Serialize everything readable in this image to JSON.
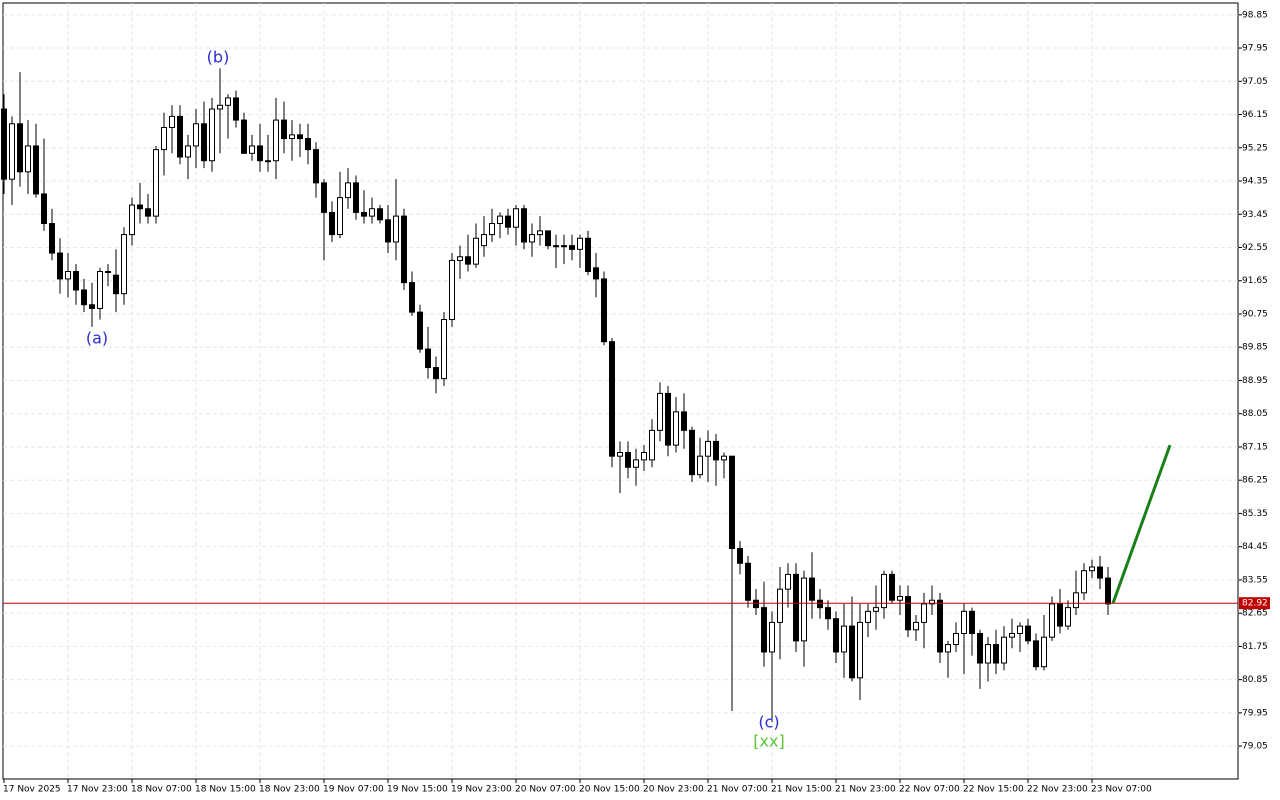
{
  "chart_data": {
    "type": "candlestick",
    "ylim": [
      78.16,
      99.17
    ],
    "yticks": [
      98.85,
      97.95,
      97.05,
      96.15,
      95.25,
      94.35,
      93.45,
      92.55,
      91.65,
      90.75,
      89.85,
      88.95,
      88.05,
      87.15,
      86.25,
      85.35,
      84.45,
      83.55,
      82.65,
      81.75,
      80.85,
      79.95,
      79.05
    ],
    "xticks": [
      "17 Nov 2025",
      "17 Nov 23:00",
      "18 Nov 07:00",
      "18 Nov 15:00",
      "18 Nov 23:00",
      "19 Nov 07:00",
      "19 Nov 15:00",
      "19 Nov 23:00",
      "20 Nov 07:00",
      "20 Nov 15:00",
      "20 Nov 23:00",
      "21 Nov 07:00",
      "21 Nov 15:00",
      "21 Nov 23:00",
      "22 Nov 07:00",
      "22 Nov 15:00",
      "22 Nov 23:00",
      "23 Nov 07:00"
    ],
    "grid": true,
    "current_price": 82.92,
    "forecast": [
      82.92,
      87.2
    ],
    "annotations": [
      {
        "text": "(a)",
        "color": "#2b2bd6"
      },
      {
        "text": "(b)",
        "color": "#2b2bd6"
      },
      {
        "text": "(c)",
        "color": "#2b2bd6"
      },
      {
        "text": "[xx]",
        "color": "#5cc63c"
      }
    ],
    "candles": [
      [
        96.3,
        96.7,
        94.0,
        94.4
      ],
      [
        94.4,
        96.1,
        93.7,
        95.9
      ],
      [
        95.9,
        97.3,
        94.2,
        94.6
      ],
      [
        94.6,
        96.0,
        94.0,
        95.3
      ],
      [
        95.3,
        95.9,
        93.9,
        94.0
      ],
      [
        94.0,
        95.5,
        93.0,
        93.2
      ],
      [
        93.2,
        93.6,
        92.2,
        92.4
      ],
      [
        92.4,
        92.8,
        91.3,
        91.7
      ],
      [
        91.7,
        92.4,
        91.2,
        91.9
      ],
      [
        91.9,
        92.1,
        91.0,
        91.4
      ],
      [
        91.4,
        91.7,
        90.8,
        91.0
      ],
      [
        91.0,
        91.6,
        90.4,
        90.9
      ],
      [
        90.9,
        92.0,
        90.6,
        91.9
      ],
      [
        91.9,
        92.1,
        91.5,
        91.9
      ],
      [
        91.8,
        92.5,
        90.8,
        91.3
      ],
      [
        91.3,
        93.1,
        91.0,
        92.9
      ],
      [
        92.9,
        93.9,
        92.6,
        93.7
      ],
      [
        93.7,
        94.3,
        93.2,
        93.6
      ],
      [
        93.6,
        94.0,
        93.2,
        93.4
      ],
      [
        93.4,
        95.3,
        93.2,
        95.2
      ],
      [
        95.2,
        96.2,
        94.5,
        95.8
      ],
      [
        95.8,
        96.4,
        95.1,
        96.1
      ],
      [
        96.1,
        96.4,
        94.8,
        95.0
      ],
      [
        95.0,
        95.6,
        94.4,
        95.3
      ],
      [
        95.3,
        96.3,
        94.7,
        95.9
      ],
      [
        95.9,
        96.5,
        94.7,
        94.9
      ],
      [
        94.9,
        96.6,
        94.6,
        96.3
      ],
      [
        96.3,
        97.4,
        95.1,
        96.4
      ],
      [
        96.4,
        96.7,
        95.5,
        96.6
      ],
      [
        96.6,
        96.8,
        95.8,
        96.0
      ],
      [
        96.0,
        96.2,
        95.1,
        95.1
      ],
      [
        95.1,
        95.6,
        94.9,
        95.3
      ],
      [
        95.3,
        95.9,
        94.6,
        94.9
      ],
      [
        94.9,
        95.6,
        94.6,
        94.9
      ],
      [
        94.9,
        96.6,
        94.4,
        96.0
      ],
      [
        96.0,
        96.5,
        95.1,
        95.5
      ],
      [
        95.5,
        96.0,
        94.9,
        95.6
      ],
      [
        95.6,
        95.9,
        95.0,
        95.5
      ],
      [
        95.5,
        95.9,
        94.8,
        95.2
      ],
      [
        95.2,
        95.4,
        93.9,
        94.3
      ],
      [
        94.3,
        94.4,
        92.2,
        93.5
      ],
      [
        93.5,
        93.8,
        92.7,
        92.9
      ],
      [
        92.9,
        94.6,
        92.8,
        93.9
      ],
      [
        93.9,
        94.7,
        93.6,
        94.3
      ],
      [
        94.3,
        94.5,
        93.3,
        93.5
      ],
      [
        93.5,
        94.1,
        93.2,
        93.4
      ],
      [
        93.4,
        93.9,
        93.2,
        93.6
      ],
      [
        93.6,
        93.7,
        93.2,
        93.3
      ],
      [
        93.3,
        93.7,
        92.4,
        92.7
      ],
      [
        92.7,
        94.4,
        92.2,
        93.4
      ],
      [
        93.4,
        93.6,
        91.4,
        91.6
      ],
      [
        91.6,
        91.9,
        90.7,
        90.8
      ],
      [
        90.8,
        91.0,
        89.7,
        89.8
      ],
      [
        89.8,
        90.4,
        89.0,
        89.3
      ],
      [
        89.3,
        89.6,
        88.6,
        89.0
      ],
      [
        89.0,
        90.8,
        88.8,
        90.6
      ],
      [
        90.6,
        92.4,
        90.4,
        92.2
      ],
      [
        92.2,
        92.6,
        91.7,
        92.3
      ],
      [
        92.3,
        92.9,
        91.9,
        92.1
      ],
      [
        92.1,
        93.2,
        92.0,
        92.8
      ],
      [
        92.6,
        93.4,
        92.3,
        92.9
      ],
      [
        92.9,
        93.6,
        92.7,
        93.2
      ],
      [
        93.2,
        93.5,
        92.8,
        93.4
      ],
      [
        93.4,
        93.6,
        92.9,
        93.1
      ],
      [
        93.1,
        93.7,
        92.6,
        93.6
      ],
      [
        93.6,
        93.7,
        92.5,
        92.7
      ],
      [
        92.7,
        93.2,
        92.3,
        92.9
      ],
      [
        92.9,
        93.4,
        92.6,
        93.0
      ],
      [
        93.0,
        93.0,
        92.5,
        92.6
      ],
      [
        92.6,
        92.9,
        92.0,
        92.6
      ],
      [
        92.6,
        92.9,
        92.1,
        92.6
      ],
      [
        92.6,
        92.9,
        92.2,
        92.5
      ],
      [
        92.5,
        92.9,
        92.0,
        92.8
      ],
      [
        92.8,
        93.0,
        91.8,
        91.9
      ],
      [
        92.0,
        92.4,
        91.2,
        91.7
      ],
      [
        91.7,
        91.9,
        89.9,
        90.0
      ],
      [
        90.0,
        90.1,
        86.6,
        86.9
      ],
      [
        86.9,
        87.3,
        85.9,
        87.0
      ],
      [
        87.0,
        87.3,
        86.3,
        86.6
      ],
      [
        86.6,
        87.1,
        86.1,
        86.8
      ],
      [
        86.8,
        87.2,
        86.5,
        87.0
      ],
      [
        86.8,
        87.9,
        86.6,
        87.6
      ],
      [
        87.6,
        88.9,
        87.3,
        88.6
      ],
      [
        88.6,
        88.8,
        86.9,
        87.2
      ],
      [
        87.2,
        88.5,
        87.0,
        88.1
      ],
      [
        88.1,
        88.6,
        87.1,
        87.6
      ],
      [
        87.6,
        87.7,
        86.2,
        86.4
      ],
      [
        86.4,
        87.4,
        86.3,
        86.9
      ],
      [
        86.9,
        87.6,
        86.2,
        87.3
      ],
      [
        87.3,
        87.5,
        86.1,
        86.8
      ],
      [
        86.8,
        87.0,
        86.3,
        86.9
      ],
      [
        86.9,
        86.9,
        80.0,
        84.4
      ],
      [
        84.4,
        84.6,
        83.7,
        84.0
      ],
      [
        84.0,
        84.2,
        82.8,
        83.0
      ],
      [
        83.0,
        83.3,
        82.6,
        82.8
      ],
      [
        82.8,
        83.5,
        81.2,
        81.6
      ],
      [
        81.6,
        82.7,
        79.7,
        82.4
      ],
      [
        82.4,
        83.9,
        81.4,
        83.3
      ],
      [
        83.3,
        84.0,
        82.8,
        83.7
      ],
      [
        83.7,
        84.0,
        81.6,
        81.9
      ],
      [
        81.9,
        83.8,
        81.2,
        83.6
      ],
      [
        83.6,
        84.3,
        82.5,
        83.0
      ],
      [
        83.0,
        83.3,
        82.5,
        82.8
      ],
      [
        82.8,
        83.0,
        82.2,
        82.5
      ],
      [
        82.5,
        82.7,
        81.3,
        81.6
      ],
      [
        81.6,
        82.9,
        80.9,
        82.3
      ],
      [
        82.3,
        83.1,
        80.8,
        80.9
      ],
      [
        80.9,
        82.9,
        80.3,
        82.4
      ],
      [
        82.4,
        82.9,
        82.0,
        82.7
      ],
      [
        82.7,
        83.4,
        82.2,
        82.8
      ],
      [
        82.8,
        83.8,
        82.5,
        83.7
      ],
      [
        83.7,
        83.8,
        82.9,
        83.0
      ],
      [
        83.0,
        83.4,
        82.6,
        83.1
      ],
      [
        83.1,
        83.4,
        82.0,
        82.2
      ],
      [
        82.2,
        82.6,
        81.9,
        82.4
      ],
      [
        82.4,
        83.2,
        81.7,
        82.9
      ],
      [
        82.9,
        83.4,
        82.6,
        83.0
      ],
      [
        83.0,
        83.2,
        81.3,
        81.6
      ],
      [
        81.6,
        81.9,
        80.9,
        81.8
      ],
      [
        81.8,
        82.4,
        81.6,
        82.1
      ],
      [
        82.1,
        82.9,
        81.0,
        82.7
      ],
      [
        82.7,
        82.8,
        81.5,
        82.1
      ],
      [
        82.1,
        82.2,
        80.6,
        81.3
      ],
      [
        81.3,
        82.0,
        80.8,
        81.8
      ],
      [
        81.8,
        82.2,
        81.0,
        81.3
      ],
      [
        81.3,
        82.3,
        81.1,
        82.0
      ],
      [
        82.0,
        82.5,
        81.7,
        82.1
      ],
      [
        82.1,
        82.4,
        81.6,
        82.3
      ],
      [
        82.3,
        82.5,
        81.8,
        81.9
      ],
      [
        81.9,
        82.1,
        81.1,
        81.2
      ],
      [
        81.2,
        82.6,
        81.1,
        82.0
      ],
      [
        82.0,
        83.1,
        81.9,
        82.9
      ],
      [
        82.9,
        83.3,
        82.1,
        82.3
      ],
      [
        82.3,
        83.0,
        82.2,
        82.8
      ],
      [
        82.8,
        83.8,
        82.6,
        83.2
      ],
      [
        83.2,
        84.0,
        83.0,
        83.8
      ],
      [
        83.8,
        84.1,
        83.6,
        83.9
      ],
      [
        83.9,
        84.2,
        83.3,
        83.6
      ],
      [
        83.6,
        83.9,
        82.6,
        82.9
      ]
    ]
  }
}
